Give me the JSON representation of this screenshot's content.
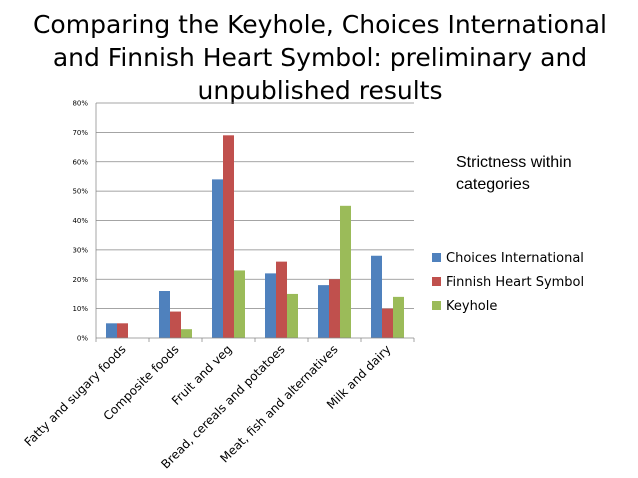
{
  "slide": {
    "title_lines": [
      "Comparing the Keyhole, Choices International",
      "and Finnish Heart Symbol: preliminary and",
      "unpublished results"
    ],
    "side_note": "Strictness within categories"
  },
  "chart_data": {
    "type": "bar",
    "categories": [
      "Fatty and sugary foods",
      "Composite foods",
      "Fruit and veg",
      "Bread, cereals and potatoes",
      "Meat, fish and alternatives",
      "Milk and dairy"
    ],
    "series": [
      {
        "name": "Choices International",
        "color": "#4F81BD",
        "values": [
          0.05,
          0.16,
          0.54,
          0.22,
          0.18,
          0.28
        ]
      },
      {
        "name": "Finnish Heart Symbol",
        "color": "#C0504D",
        "values": [
          0.05,
          0.09,
          0.69,
          0.26,
          0.2,
          0.1
        ]
      },
      {
        "name": "Keyhole",
        "color": "#9BBB59",
        "values": [
          null,
          0.03,
          0.23,
          0.15,
          0.45,
          0.14
        ]
      }
    ],
    "yticks": [
      "0%",
      "10%",
      "20%",
      "30%",
      "40%",
      "50%",
      "60%",
      "70%",
      "80%"
    ],
    "ylim": [
      0,
      0.8
    ],
    "grid": true,
    "legend_position": "right"
  }
}
